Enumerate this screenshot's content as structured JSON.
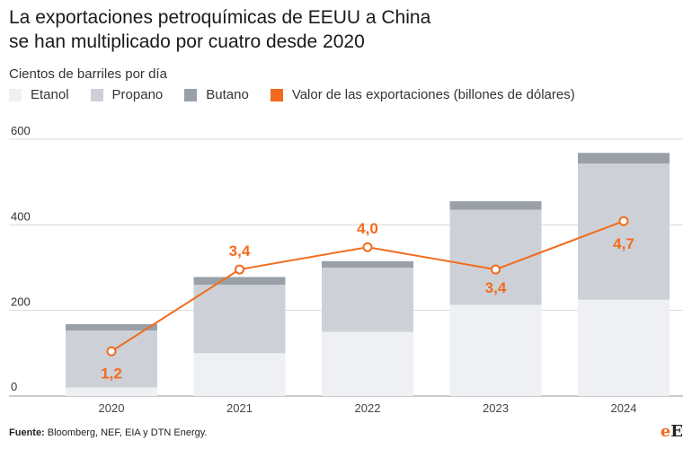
{
  "chart_data": {
    "type": "bar",
    "title_line1": "La exportaciones petroquímicas de EEUU a China",
    "title_line2": "se han multiplicado por cuatro desde 2020",
    "subtitle": "Cientos de barriles por día",
    "categories": [
      "2020",
      "2021",
      "2022",
      "2023",
      "2024"
    ],
    "stacked": true,
    "series": [
      {
        "name": "Etanol",
        "color": "#eef0f3",
        "values": [
          20,
          100,
          150,
          213,
          225
        ]
      },
      {
        "name": "Propano",
        "color": "#cdd1d7",
        "values": [
          133,
          160,
          150,
          222,
          318
        ]
      },
      {
        "name": "Butano",
        "color": "#9aa0a8",
        "values": [
          15,
          18,
          15,
          20,
          25
        ]
      }
    ],
    "line_series": {
      "name": "Valor de las exportaciones (billones de dólares)",
      "color": "#f26b1d",
      "values": [
        1.2,
        3.4,
        4.0,
        3.4,
        4.7
      ],
      "labels": [
        "1,2",
        "3,4",
        "4,0",
        "3,4",
        "4,7"
      ]
    },
    "y_ticks": [
      0,
      200,
      400,
      600
    ],
    "ylim": [
      0,
      600
    ],
    "grid": true,
    "legend_position": "top-left"
  },
  "footer": {
    "label": "Fuente:",
    "text": "Bloomberg, NEF, EIA y DTN Energy."
  },
  "logo": {
    "text_e": "e",
    "text_E": "E"
  }
}
